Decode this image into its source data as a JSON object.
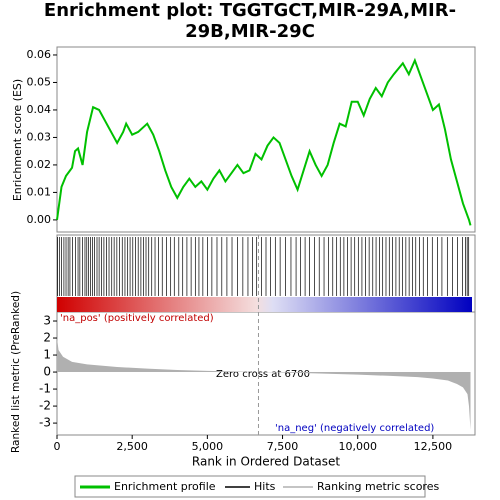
{
  "chart_data": [
    {
      "type": "line",
      "title": "Enrichment plot: TGGTGCT,MIR-29A,MIR-29B,MIR-29C",
      "ylabel": "Enrichment score (ES)",
      "xlim": [
        0,
        13900
      ],
      "ylim": [
        -0.0044,
        0.0629
      ],
      "yticks": [
        {
          "value": 0,
          "label": "0.00"
        },
        {
          "value": 0.01,
          "label": "0.01"
        },
        {
          "value": 0.02,
          "label": "0.02"
        },
        {
          "value": 0.03,
          "label": "0.03"
        },
        {
          "value": 0.04,
          "label": "0.04"
        },
        {
          "value": 0.05,
          "label": "0.05"
        },
        {
          "value": 0.06,
          "label": "0.06"
        }
      ],
      "x": [
        0,
        50,
        150,
        300,
        500,
        600,
        700,
        850,
        1000,
        1200,
        1400,
        1600,
        1800,
        2000,
        2200,
        2300,
        2500,
        2700,
        2900,
        3000,
        3200,
        3400,
        3600,
        3800,
        4000,
        4200,
        4400,
        4600,
        4800,
        5000,
        5200,
        5400,
        5600,
        5800,
        6000,
        6200,
        6400,
        6600,
        6800,
        7000,
        7200,
        7400,
        7600,
        7800,
        8000,
        8200,
        8400,
        8600,
        8800,
        9000,
        9200,
        9400,
        9600,
        9800,
        10000,
        10200,
        10400,
        10600,
        10800,
        11000,
        11200,
        11500,
        11700,
        11900,
        12100,
        12300,
        12500,
        12700,
        12900,
        13100,
        13300,
        13500,
        13700,
        13750
      ],
      "series": [
        {
          "name": "Enrichment profile",
          "color": "#00c000",
          "values": [
            0,
            0.004,
            0.012,
            0.016,
            0.019,
            0.025,
            0.026,
            0.02,
            0.032,
            0.041,
            0.04,
            0.036,
            0.032,
            0.028,
            0.032,
            0.035,
            0.031,
            0.032,
            0.034,
            0.035,
            0.031,
            0.025,
            0.018,
            0.012,
            0.008,
            0.012,
            0.015,
            0.012,
            0.014,
            0.011,
            0.015,
            0.018,
            0.014,
            0.017,
            0.02,
            0.017,
            0.018,
            0.024,
            0.022,
            0.027,
            0.03,
            0.028,
            0.022,
            0.016,
            0.011,
            0.018,
            0.025,
            0.02,
            0.016,
            0.02,
            0.028,
            0.035,
            0.034,
            0.043,
            0.043,
            0.038,
            0.044,
            0.048,
            0.045,
            0.05,
            0.053,
            0.057,
            0.053,
            0.058,
            0.052,
            0.046,
            0.04,
            0.042,
            0.033,
            0.022,
            0.014,
            0.006,
            0,
            -0.002
          ]
        }
      ],
      "hits": {
        "name": "Hits",
        "color": "#000000",
        "positions": [
          20,
          80,
          150,
          230,
          300,
          370,
          430,
          520,
          610,
          700,
          760,
          850,
          930,
          990,
          1050,
          1110,
          1180,
          1250,
          1330,
          1400,
          1480,
          1560,
          1650,
          1730,
          1820,
          1900,
          1990,
          2080,
          2170,
          2260,
          2350,
          2430,
          2520,
          2610,
          2700,
          2790,
          2880,
          2960,
          3050,
          3150,
          3260,
          3380,
          3500,
          3640,
          3780,
          3900,
          4050,
          4180,
          4320,
          4460,
          4600,
          4720,
          4850,
          5000,
          5150,
          5320,
          5480,
          5650,
          5820,
          6000,
          6180,
          6350,
          6500,
          6640,
          6800,
          6950,
          7100,
          7260,
          7420,
          7600,
          7780,
          7950,
          8100,
          8250,
          8400,
          8560,
          8720,
          8880,
          9030,
          9170,
          9300,
          9420,
          9540,
          9660,
          9780,
          9900,
          10020,
          10140,
          10260,
          10380,
          10500,
          10610,
          10720,
          10830,
          10940,
          11050,
          11160,
          11270,
          11380,
          11490,
          11600,
          11710,
          11820,
          11930,
          12050,
          12180,
          12320,
          12480,
          12650,
          12800,
          12980,
          13150,
          13320,
          13480,
          13580,
          13640,
          13690
        ]
      }
    },
    {
      "type": "area",
      "ylabel": "Ranked list metric (PreRanked)",
      "xlabel": "Rank in Ordered Dataset",
      "xlim": [
        0,
        13900
      ],
      "ylim": [
        -3.7,
        3.53
      ],
      "xticks": [
        0,
        {
          "value": 2500,
          "label": "2,500"
        },
        {
          "value": 5000,
          "label": "5,000"
        },
        {
          "value": 7500,
          "label": "7,500"
        },
        {
          "value": 10000,
          "label": "10,000"
        },
        {
          "value": 12500,
          "label": "12,500"
        }
      ],
      "yticks": [
        -3,
        -2,
        -1,
        0,
        1,
        2,
        3
      ],
      "x": [
        0,
        50,
        200,
        500,
        1000,
        2000,
        3000,
        4000,
        5000,
        6000,
        6700,
        8000,
        9000,
        10000,
        11000,
        12000,
        12500,
        13000,
        13300,
        13500,
        13650,
        13700,
        13750
      ],
      "series": [
        {
          "name": "Ranking metric scores",
          "color": "#b0b0b0",
          "values": [
            2.0,
            1.3,
            0.9,
            0.6,
            0.45,
            0.3,
            0.2,
            0.12,
            0.07,
            0.03,
            0,
            -0.05,
            -0.1,
            -0.15,
            -0.22,
            -0.3,
            -0.38,
            -0.5,
            -0.7,
            -0.9,
            -1.3,
            -2,
            -3.4
          ]
        }
      ],
      "zero_cross": 6700,
      "annotations": [
        "'na_pos' (positively correlated)",
        "Zero cross at 6700",
        "'na_neg' (negatively correlated)"
      ]
    }
  ]
}
